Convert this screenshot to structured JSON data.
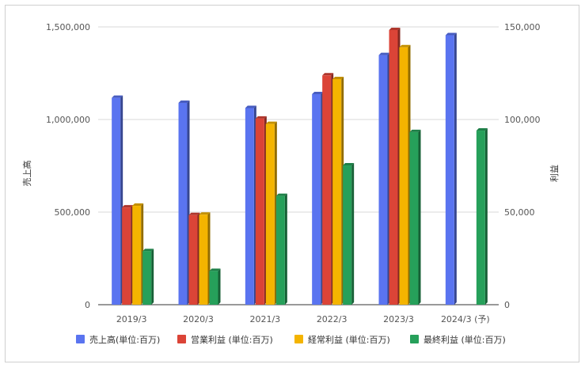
{
  "chart_data": {
    "type": "bar",
    "title": "",
    "categories": [
      "2019/3",
      "2020/3",
      "2021/3",
      "2022/3",
      "2023/3",
      "2024/3 (予)"
    ],
    "left_axis": {
      "label": "売上高",
      "ylim": [
        0,
        1500000
      ],
      "ticks": [
        "0",
        "500,000",
        "1,000,000",
        "1,500,000"
      ]
    },
    "right_axis": {
      "label": "利益",
      "ylim": [
        0,
        150000
      ],
      "ticks": [
        "0",
        "50,000",
        "100,000",
        "150,000"
      ]
    },
    "grid": true,
    "legend_position": "bottom",
    "series": [
      {
        "name": "売上高(単位:百万)",
        "axis": "left",
        "color": "#5a74f0",
        "values": [
          1117000,
          1090000,
          1062000,
          1137000,
          1348000,
          1455000
        ]
      },
      {
        "name": "営業利益 (単位:百万)",
        "axis": "right",
        "color": "#db4437",
        "values": [
          52500,
          48400,
          100500,
          123800,
          148300,
          null
        ]
      },
      {
        "name": "経常利益 (単位:百万)",
        "axis": "right",
        "color": "#f4b400",
        "values": [
          53400,
          48600,
          97600,
          121800,
          139000,
          null
        ]
      },
      {
        "name": "最終利益 (単位:百万)",
        "axis": "right",
        "color": "#26a05a",
        "values": [
          28900,
          18200,
          58700,
          75200,
          93200,
          94000
        ]
      }
    ]
  }
}
